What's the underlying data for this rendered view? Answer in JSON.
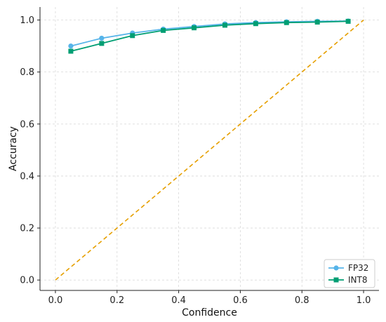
{
  "chart_data": {
    "type": "line",
    "title": "",
    "xlabel": "Confidence",
    "ylabel": "Accuracy",
    "xlim": [
      -0.05,
      1.05
    ],
    "ylim": [
      -0.04,
      1.05
    ],
    "xticks": [
      "0.0",
      "0.2",
      "0.4",
      "0.6",
      "0.8",
      "1.0"
    ],
    "yticks": [
      "0.0",
      "0.2",
      "0.4",
      "0.6",
      "0.8",
      "1.0"
    ],
    "grid": true,
    "legend_position": "bottom-right",
    "reference_line": {
      "x": [
        0,
        1
      ],
      "y": [
        0,
        1
      ],
      "color": "#E69F00",
      "style": "dashed"
    },
    "series": [
      {
        "name": "FP32",
        "color": "#56B4E9",
        "marker": "circle",
        "x": [
          0.05,
          0.15,
          0.25,
          0.35,
          0.45,
          0.55,
          0.65,
          0.75,
          0.85,
          0.95
        ],
        "y": [
          0.9,
          0.93,
          0.95,
          0.965,
          0.975,
          0.985,
          0.99,
          0.993,
          0.995,
          0.996
        ]
      },
      {
        "name": "INT8",
        "color": "#009E73",
        "marker": "square",
        "x": [
          0.05,
          0.15,
          0.25,
          0.35,
          0.45,
          0.55,
          0.65,
          0.75,
          0.85,
          0.95
        ],
        "y": [
          0.88,
          0.91,
          0.94,
          0.96,
          0.97,
          0.98,
          0.986,
          0.99,
          0.992,
          0.995
        ]
      }
    ]
  }
}
